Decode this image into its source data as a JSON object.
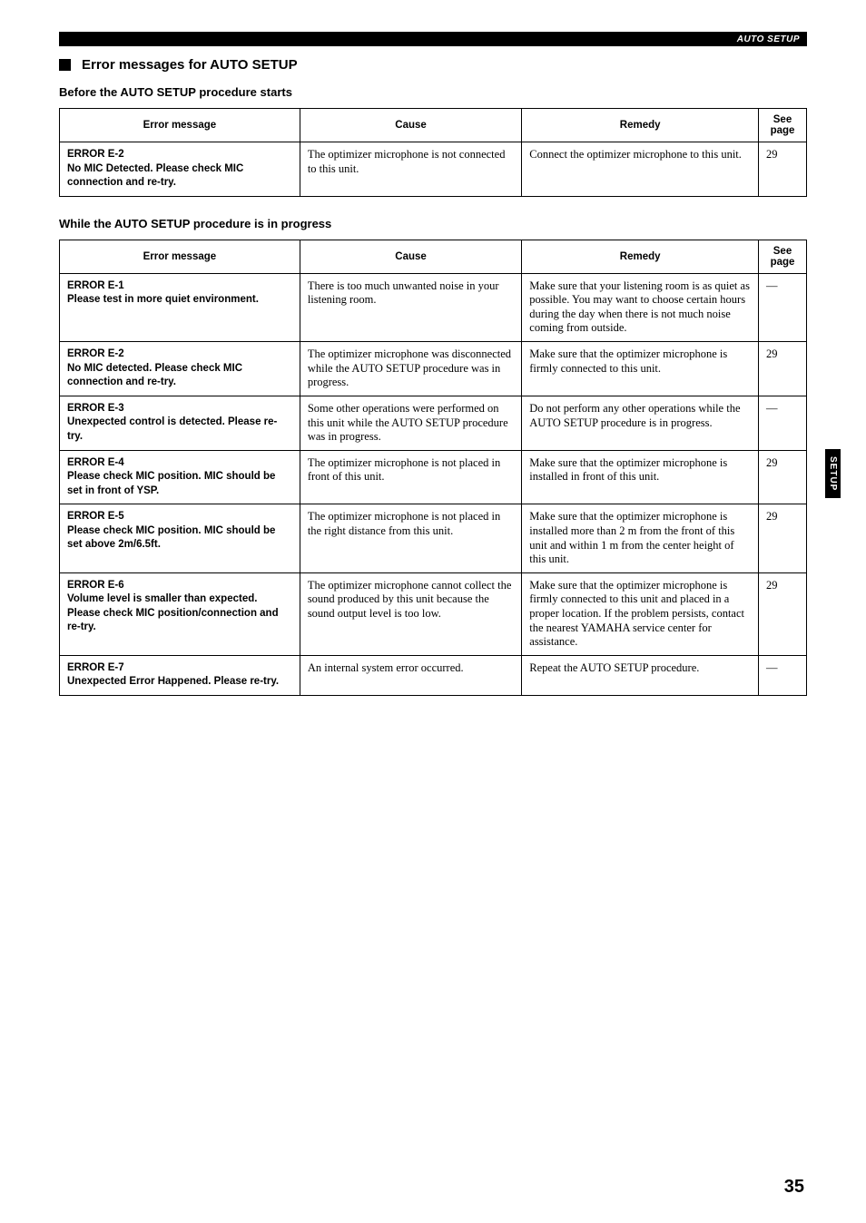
{
  "header": {
    "label": "AUTO SETUP"
  },
  "section": {
    "title": "Error messages for AUTO SETUP",
    "before": {
      "heading": "Before the AUTO SETUP procedure starts",
      "columns": {
        "msg": "Error message",
        "cause": "Cause",
        "remedy": "Remedy",
        "page": "See page"
      },
      "rows": [
        {
          "msg": "ERROR E-2\nNo MIC Detected. Please check MIC connection and re-try.",
          "cause": "The optimizer microphone is not connected to this unit.",
          "remedy": "Connect the optimizer microphone to this unit.",
          "page": "29"
        }
      ]
    },
    "while": {
      "heading": "While the AUTO SETUP procedure is in progress",
      "columns": {
        "msg": "Error message",
        "cause": "Cause",
        "remedy": "Remedy",
        "page": "See page"
      },
      "rows": [
        {
          "msg": "ERROR E-1\nPlease test in more quiet environment.",
          "cause": "There is too much unwanted noise in your listening room.",
          "remedy": "Make sure that your listening room is as quiet as possible. You may want to choose certain hours during the day when there is not much noise coming from outside.",
          "page": "—"
        },
        {
          "msg": "ERROR E-2\nNo MIC detected. Please check MIC connection and re-try.",
          "cause": "The optimizer microphone was disconnected while the AUTO SETUP procedure was in progress.",
          "remedy": "Make sure that the optimizer microphone is firmly connected to this unit.",
          "page": "29"
        },
        {
          "msg": "ERROR E-3\nUnexpected control is detected. Please re-try.",
          "cause": "Some other operations were performed on this unit while the AUTO SETUP procedure was in progress.",
          "remedy": "Do not perform any other operations while the AUTO SETUP procedure is in progress.",
          "page": "—"
        },
        {
          "msg": "ERROR E-4\nPlease check MIC position. MIC should be set in front of YSP.",
          "cause": "The optimizer microphone is not placed in front of this unit.",
          "remedy": "Make sure that the optimizer microphone is installed in front of this unit.",
          "page": "29"
        },
        {
          "msg": "ERROR E-5\nPlease check MIC position. MIC should be set above 2m/6.5ft.",
          "cause": "The optimizer microphone is not placed in the right distance from this unit.",
          "remedy": "Make sure that the optimizer microphone is installed more than 2 m from the front of this unit and within 1 m from the center height of this unit.",
          "page": "29"
        },
        {
          "msg": "ERROR E-6\nVolume level is smaller than expected. Please check MIC position/connection and re-try.",
          "cause": "The optimizer microphone cannot collect the sound produced by this unit because the sound output level is too low.",
          "remedy": "Make sure that the optimizer microphone is firmly connected to this unit and placed in a proper location. If the problem persists, contact the nearest YAMAHA service center for assistance.",
          "page": "29"
        },
        {
          "msg": "ERROR E-7\nUnexpected Error Happened. Please re-try.",
          "cause": "An internal system error occurred.",
          "remedy": "Repeat the AUTO SETUP procedure.",
          "page": "—"
        }
      ]
    }
  },
  "sideTab": "SETUP",
  "pageNumber": "35"
}
